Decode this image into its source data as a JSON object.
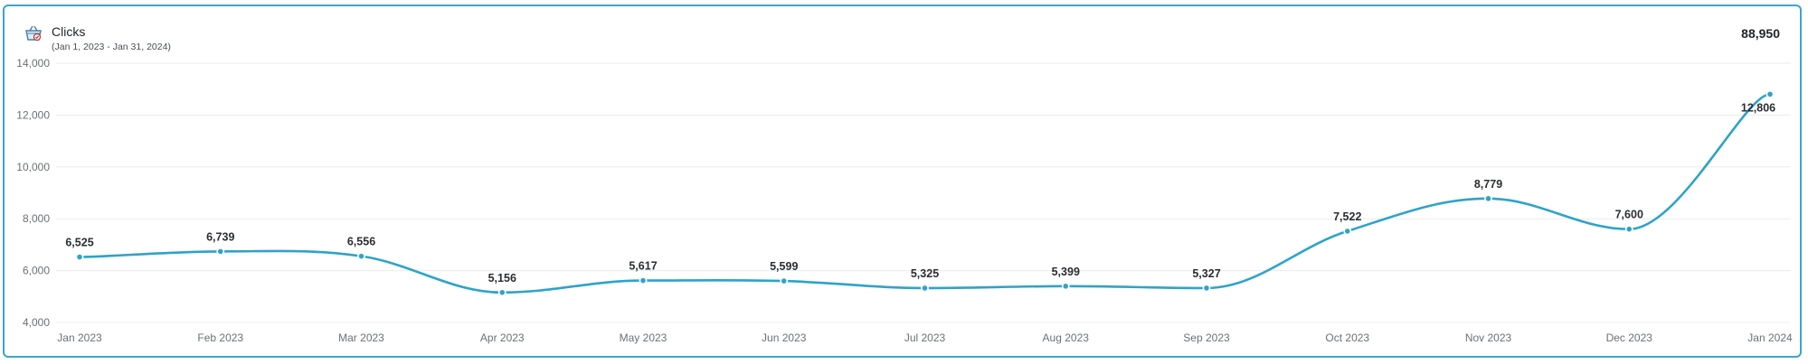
{
  "header": {
    "title": "Clicks",
    "date_range": "(Jan 1, 2023 - Jan 31, 2024)",
    "total": "88,950",
    "icon": "shopping-basket-icon"
  },
  "colors": {
    "line": "#2ea3c9",
    "border": "#3aa6cc",
    "grid": "#ececec",
    "label": "#2a2d31",
    "tick": "#6b7076"
  },
  "chart_data": {
    "type": "line",
    "title": "Clicks",
    "xlabel": "",
    "ylabel": "",
    "categories": [
      "Jan 2023",
      "Feb 2023",
      "Mar 2023",
      "Apr 2023",
      "May 2023",
      "Jun 2023",
      "Jul 2023",
      "Aug 2023",
      "Sep 2023",
      "Oct 2023",
      "Nov 2023",
      "Dec 2023",
      "Jan 2024"
    ],
    "series": [
      {
        "values": [
          6525,
          6739,
          6556,
          5156,
          5617,
          5599,
          5325,
          5399,
          5327,
          7522,
          8779,
          7600,
          12806
        ],
        "labels": [
          "6,525",
          "6,739",
          "6,556",
          "5,156",
          "5,617",
          "5,599",
          "5,325",
          "5,399",
          "5,327",
          "7,522",
          "8,779",
          "7,600",
          "12,806"
        ]
      }
    ],
    "yticks": [
      4000,
      6000,
      8000,
      10000,
      12000,
      14000
    ],
    "ytick_labels": [
      "4,000",
      "6,000",
      "8,000",
      "10,000",
      "12,000",
      "14,000"
    ],
    "ylim": [
      4000,
      14000
    ],
    "grid": true,
    "legend": "none"
  }
}
